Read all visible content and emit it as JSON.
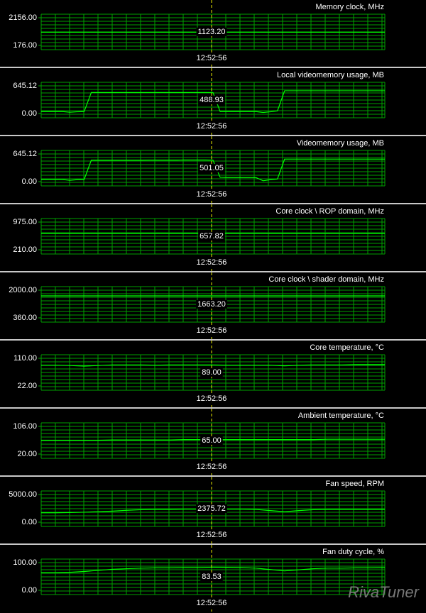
{
  "chart_data": [
    {
      "type": "line",
      "title": "Memory clock, MHz",
      "color": "#00ff00",
      "values": [
        1123.2,
        1123.2,
        1123.2,
        1123.2,
        1123.2,
        1123.2,
        1123.2,
        1123.2,
        1123.2,
        1123.2,
        1123.2,
        1123.2,
        1123.2
      ],
      "ylim": [
        176,
        2156
      ],
      "yticks": [
        {
          "value": 176,
          "label": "176.00"
        },
        {
          "value": 2156,
          "label": "2156.00"
        }
      ],
      "cursor_label": "1123.20",
      "cursor_time": "12:52:56"
    },
    {
      "type": "line",
      "title": "Local videomemory usage, MB",
      "color": "#00ff00",
      "values": [
        45,
        45,
        45,
        45,
        30,
        40,
        45,
        490,
        490,
        490,
        490,
        490,
        490,
        490,
        490,
        490,
        490,
        490,
        490,
        490,
        490,
        490,
        490,
        490,
        489,
        45,
        45,
        45,
        45,
        45,
        45,
        25,
        40,
        60,
        530,
        530,
        530,
        530,
        530,
        530,
        530,
        530,
        530,
        530,
        530,
        530,
        530,
        530,
        530
      ],
      "ylim": [
        0,
        645.12
      ],
      "yticks": [
        {
          "value": 0,
          "label": "0.00"
        },
        {
          "value": 645.12,
          "label": "645.12"
        }
      ],
      "cursor_label": "488.93",
      "cursor_time": "12:52:56"
    },
    {
      "type": "line",
      "title": "Videomemory usage, MB",
      "color": "#00ff00",
      "values": [
        50,
        50,
        50,
        50,
        30,
        45,
        50,
        500,
        500,
        500,
        500,
        500,
        500,
        500,
        500,
        502,
        502,
        502,
        503,
        503,
        504,
        505,
        505,
        505,
        501,
        100,
        95,
        95,
        95,
        95,
        95,
        20,
        45,
        60,
        525,
        525,
        525,
        525,
        525,
        525,
        525,
        525,
        525,
        525,
        525,
        525,
        525,
        525,
        525
      ],
      "ylim": [
        0,
        645.12
      ],
      "yticks": [
        {
          "value": 0,
          "label": "0.00"
        },
        {
          "value": 645.12,
          "label": "645.12"
        }
      ],
      "cursor_label": "501.05",
      "cursor_time": "12:52:56"
    },
    {
      "type": "line",
      "title": "Core clock \\ ROP domain, MHz",
      "color": "#00ff00",
      "values": [
        657.82,
        657.82,
        657.82,
        657.82,
        657.82,
        657.82,
        657.82,
        657.82,
        657.82,
        657.82,
        657.82,
        657.82,
        657.82
      ],
      "ylim": [
        210,
        975
      ],
      "yticks": [
        {
          "value": 210,
          "label": "210.00"
        },
        {
          "value": 975,
          "label": "975.00"
        }
      ],
      "cursor_label": "657.82",
      "cursor_time": "12:52:56"
    },
    {
      "type": "line",
      "title": "Core clock \\ shader domain, MHz",
      "color": "#00ff00",
      "values": [
        1663.2,
        1663.2,
        1663.2,
        1663.2,
        1663.2,
        1663.2,
        1663.2,
        1663.2,
        1663.2,
        1663.2,
        1663.2,
        1663.2,
        1663.2
      ],
      "ylim": [
        360,
        2000
      ],
      "yticks": [
        {
          "value": 360,
          "label": "360.00"
        },
        {
          "value": 2000,
          "label": "2000.00"
        }
      ],
      "cursor_label": "1663.20",
      "cursor_time": "12:52:56"
    },
    {
      "type": "line",
      "title": "Core temperature, °C",
      "color": "#00ff00",
      "values": [
        88,
        88,
        87,
        85,
        87,
        89,
        89,
        89,
        88,
        89,
        89,
        89,
        89,
        88,
        88,
        88,
        88,
        86,
        88,
        89,
        89,
        89,
        90,
        90,
        90
      ],
      "ylim": [
        22,
        110
      ],
      "yticks": [
        {
          "value": 22,
          "label": "22.00"
        },
        {
          "value": 110,
          "label": "110.00"
        }
      ],
      "cursor_label": "89.00",
      "cursor_time": "12:52:56"
    },
    {
      "type": "line",
      "title": "Ambient temperature, °C",
      "color": "#00ff00",
      "values": [
        63,
        63,
        63,
        63,
        63,
        64,
        64,
        64,
        64,
        64,
        65,
        65,
        65,
        65,
        65,
        65,
        65,
        65,
        65,
        65,
        66,
        66,
        66,
        66,
        66
      ],
      "ylim": [
        20,
        106
      ],
      "yticks": [
        {
          "value": 20,
          "label": "20.00"
        },
        {
          "value": 106,
          "label": "106.00"
        }
      ],
      "cursor_label": "65.00",
      "cursor_time": "12:52:56"
    },
    {
      "type": "line",
      "title": "Fan speed, RPM",
      "color": "#00ff00",
      "values": [
        1700,
        1700,
        1750,
        1800,
        1900,
        2000,
        2150,
        2250,
        2300,
        2300,
        2350,
        2350,
        2376,
        2350,
        2350,
        2300,
        2100,
        1900,
        2100,
        2250,
        2300,
        2300,
        2300,
        2300,
        2300
      ],
      "ylim": [
        0,
        5000
      ],
      "yticks": [
        {
          "value": 0,
          "label": "0.00"
        },
        {
          "value": 5000,
          "label": "5000.00"
        }
      ],
      "cursor_label": "2375.72",
      "cursor_time": "12:52:56"
    },
    {
      "type": "line",
      "title": "Fan duty cycle, %",
      "color": "#00ff00",
      "values": [
        64,
        64,
        65,
        68,
        72,
        76,
        78,
        80,
        81,
        81,
        82,
        82,
        83.5,
        83,
        82,
        80,
        75,
        70,
        74,
        78,
        80,
        80,
        81,
        81,
        82
      ],
      "ylim": [
        0,
        100
      ],
      "yticks": [
        {
          "value": 0,
          "label": "0.00"
        },
        {
          "value": 100,
          "label": "100.00"
        }
      ],
      "cursor_label": "83.53",
      "cursor_time": "12:52:56"
    }
  ],
  "watermark": "RivaTuner"
}
